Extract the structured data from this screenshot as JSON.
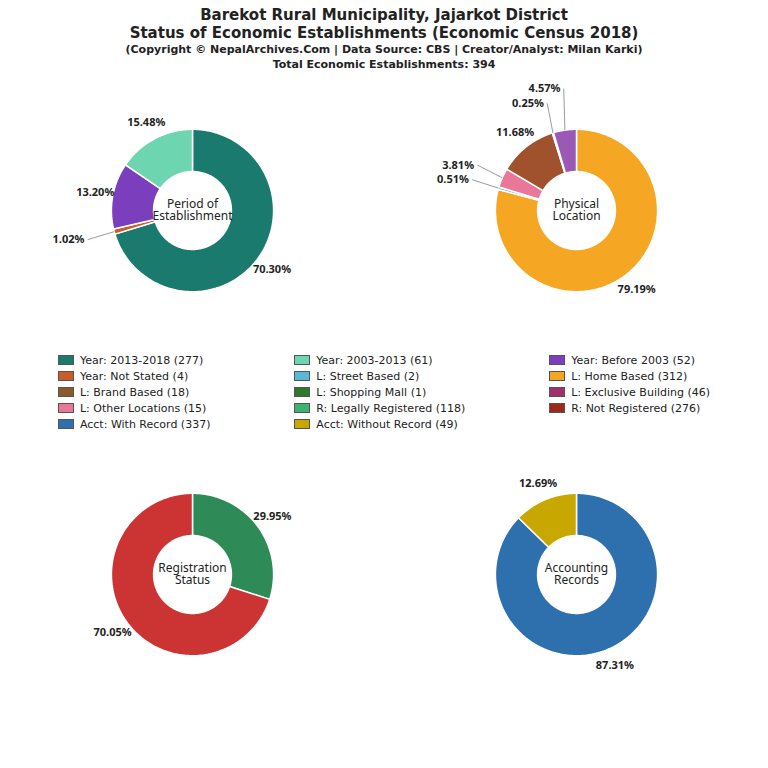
{
  "title": "Barekot Rural Municipality, Jajarkot District\nStatus of Economic Establishments (Economic Census 2018)",
  "subtitle": "(Copyright © NepalArchives.Com | Data Source: CBS | Creator/Analyst: Milan Karki)\nTotal Economic Establishments: 394",
  "chart_data": [
    {
      "type": "pie",
      "title": "Period of\nEstablishment",
      "values": [
        70.3,
        1.02,
        13.2,
        15.48
      ],
      "value_labels": [
        "70.30%",
        "1.02%",
        "13.20%",
        "15.48%"
      ],
      "colors": [
        "#1a7a6e",
        "#c95c2a",
        "#7b3fbe",
        "#6dd5b0"
      ],
      "data_labels": true
    },
    {
      "type": "pie",
      "title": "Physical\nLocation",
      "values": [
        79.19,
        0.51,
        3.81,
        11.68,
        0.25,
        4.57
      ],
      "value_labels": [
        "79.19%",
        "0.51%",
        "3.81%",
        "11.68%",
        "0.25%",
        "4.57%"
      ],
      "colors": [
        "#f5a623",
        "#5bb8d4",
        "#e8779a",
        "#a0522d",
        "#2d7a2d",
        "#9b59b6"
      ],
      "data_labels": true
    },
    {
      "type": "pie",
      "title": "Registration\nStatus",
      "values": [
        29.95,
        70.05
      ],
      "value_labels": [
        "29.95%",
        "70.05%"
      ],
      "colors": [
        "#2e8b57",
        "#cc3333"
      ],
      "data_labels": true
    },
    {
      "type": "pie",
      "title": "Accounting\nRecords",
      "values": [
        87.31,
        12.69
      ],
      "value_labels": [
        "87.31%",
        "12.69%"
      ],
      "colors": [
        "#2e6fad",
        "#c8a800"
      ],
      "data_labels": true
    }
  ],
  "legend_entries": [
    [
      {
        "label": "Year: 2013-2018 (277)",
        "color": "#1a7a6e"
      },
      {
        "label": "Year: Not Stated (4)",
        "color": "#c95c2a"
      },
      {
        "label": "L: Brand Based (18)",
        "color": "#8b5a2b"
      },
      {
        "label": "L: Other Locations (15)",
        "color": "#e8779a"
      },
      {
        "label": "Acct: With Record (337)",
        "color": "#2e6fad"
      }
    ],
    [
      {
        "label": "Year: 2003-2013 (61)",
        "color": "#6dd5b0"
      },
      {
        "label": "L: Street Based (2)",
        "color": "#5bb8d4"
      },
      {
        "label": "L: Shopping Mall (1)",
        "color": "#2d7a2d"
      },
      {
        "label": "R: Legally Registered (118)",
        "color": "#3cb371"
      },
      {
        "label": "Acct: Without Record (49)",
        "color": "#c8a800"
      }
    ],
    [
      {
        "label": "Year: Before 2003 (52)",
        "color": "#7b3fbe"
      },
      {
        "label": "L: Home Based (312)",
        "color": "#f5a623"
      },
      {
        "label": "L: Exclusive Building (46)",
        "color": "#a0306e"
      },
      {
        "label": "R: Not Registered (276)",
        "color": "#9b2a1a"
      }
    ]
  ]
}
